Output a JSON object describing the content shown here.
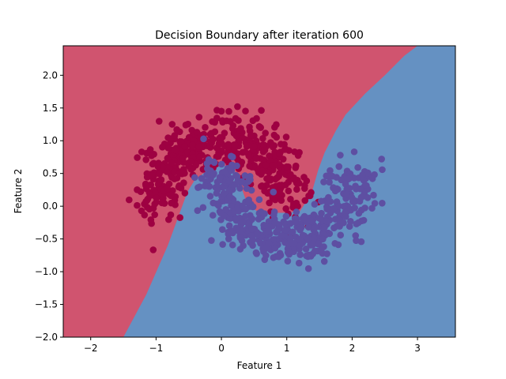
{
  "chart_data": {
    "type": "scatter",
    "title": "Decision Boundary after iteration 600",
    "xlabel": "Feature 1",
    "ylabel": "Feature 2",
    "xlim": [
      -2.42,
      3.58
    ],
    "ylim": [
      -2.0,
      2.45
    ],
    "xticks": [
      -2,
      -1,
      0,
      1,
      2,
      3
    ],
    "xtick_labels": [
      "−2",
      "−1",
      "0",
      "1",
      "2",
      "3"
    ],
    "yticks": [
      -2.0,
      -1.5,
      -1.0,
      -0.5,
      0.0,
      0.5,
      1.0,
      1.5,
      2.0
    ],
    "ytick_labels": [
      "−2.0",
      "−1.5",
      "−1.0",
      "−0.5",
      "0.0",
      "0.5",
      "1.0",
      "1.5",
      "2.0"
    ],
    "grid": false,
    "regions": [
      {
        "name": "class 0 region",
        "color": "#d0546f"
      },
      {
        "name": "class 1 region",
        "color": "#6591c2"
      }
    ],
    "decision_boundary": {
      "x": [
        -1.5,
        -1.15,
        -0.82,
        -0.6,
        -0.52,
        -0.42,
        -0.28,
        -0.12,
        0.05,
        0.2,
        0.3,
        0.4,
        0.55,
        0.75,
        0.95,
        1.2,
        1.38,
        1.48,
        1.58,
        1.75,
        1.9,
        2.2,
        2.5,
        2.8,
        3.0
      ],
      "y": [
        -2.0,
        -1.35,
        -0.6,
        0.0,
        0.22,
        0.38,
        0.5,
        0.6,
        0.62,
        0.55,
        0.3,
        0.02,
        -0.08,
        -0.1,
        -0.1,
        -0.08,
        0.2,
        0.55,
        0.82,
        1.15,
        1.4,
        1.72,
        2.0,
        2.3,
        2.45
      ]
    },
    "series": [
      {
        "name": "class 0",
        "color": "#9e0142",
        "arc": {
          "cx": 0.0,
          "cy": 0.0,
          "r": 1.0,
          "angle_start": 0,
          "angle_end": 180,
          "noise": 0.2
        },
        "n_points": 500
      },
      {
        "name": "class 1",
        "color": "#5e4fa2",
        "arc": {
          "cx": 1.0,
          "cy": 0.5,
          "r": 1.0,
          "angle_start": 180,
          "angle_end": 360,
          "noise": 0.2
        },
        "n_points": 500
      }
    ]
  }
}
